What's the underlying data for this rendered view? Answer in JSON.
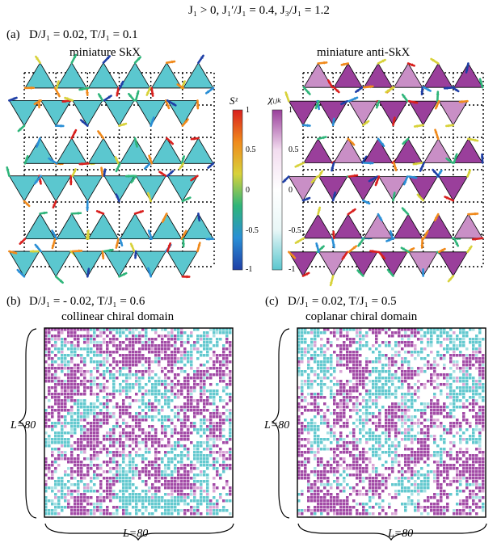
{
  "header": {
    "text": "J₁ > 0,    J₁′/J₁ = 0.4,    J₃/J₁ = 1.2"
  },
  "panel_a": {
    "label": "(a)",
    "params": "D/J₁ = 0.02,   T/J₁ = 0.1",
    "left_title": "miniature SkX",
    "right_title": "miniature anti-SkX"
  },
  "colorbar_sz": {
    "label": "Sᶻ",
    "ticks": [
      "1",
      "0.5",
      "0",
      "-0.5",
      "-1"
    ],
    "colors": [
      "#1f3fa6",
      "#2a8fd6",
      "#2fb57a",
      "#d8d23a",
      "#f08a1c",
      "#d9201e"
    ]
  },
  "colorbar_chi": {
    "label": "χᵢⱼₖ",
    "ticks": [
      "1",
      "0.5",
      "0",
      "-0.5",
      "-1"
    ],
    "colors": [
      "#5bc7cf",
      "#e9f7f7",
      "#ffffff",
      "#f2dcef",
      "#9a3f9b"
    ]
  },
  "panel_b": {
    "label": "(b)",
    "params": "D/J₁ = - 0.02,   T/J₁ = 0.6",
    "title": "collinear chiral domain",
    "size_v": "L=80",
    "size_h": "L=80"
  },
  "panel_c": {
    "label": "(c)",
    "params": "D/J₁ = 0.02,   T/J₁ = 0.5",
    "title": "coplanar chiral domain",
    "size_v": "L=80",
    "size_h": "L=80"
  },
  "colors": {
    "skx_triangle": "#5bc7cf",
    "antiskx_dark": "#9a3f9b",
    "antiskx_light": "#c98fc6",
    "magenta_domain": "#a24aa6",
    "cyan_domain": "#63c9cf"
  }
}
